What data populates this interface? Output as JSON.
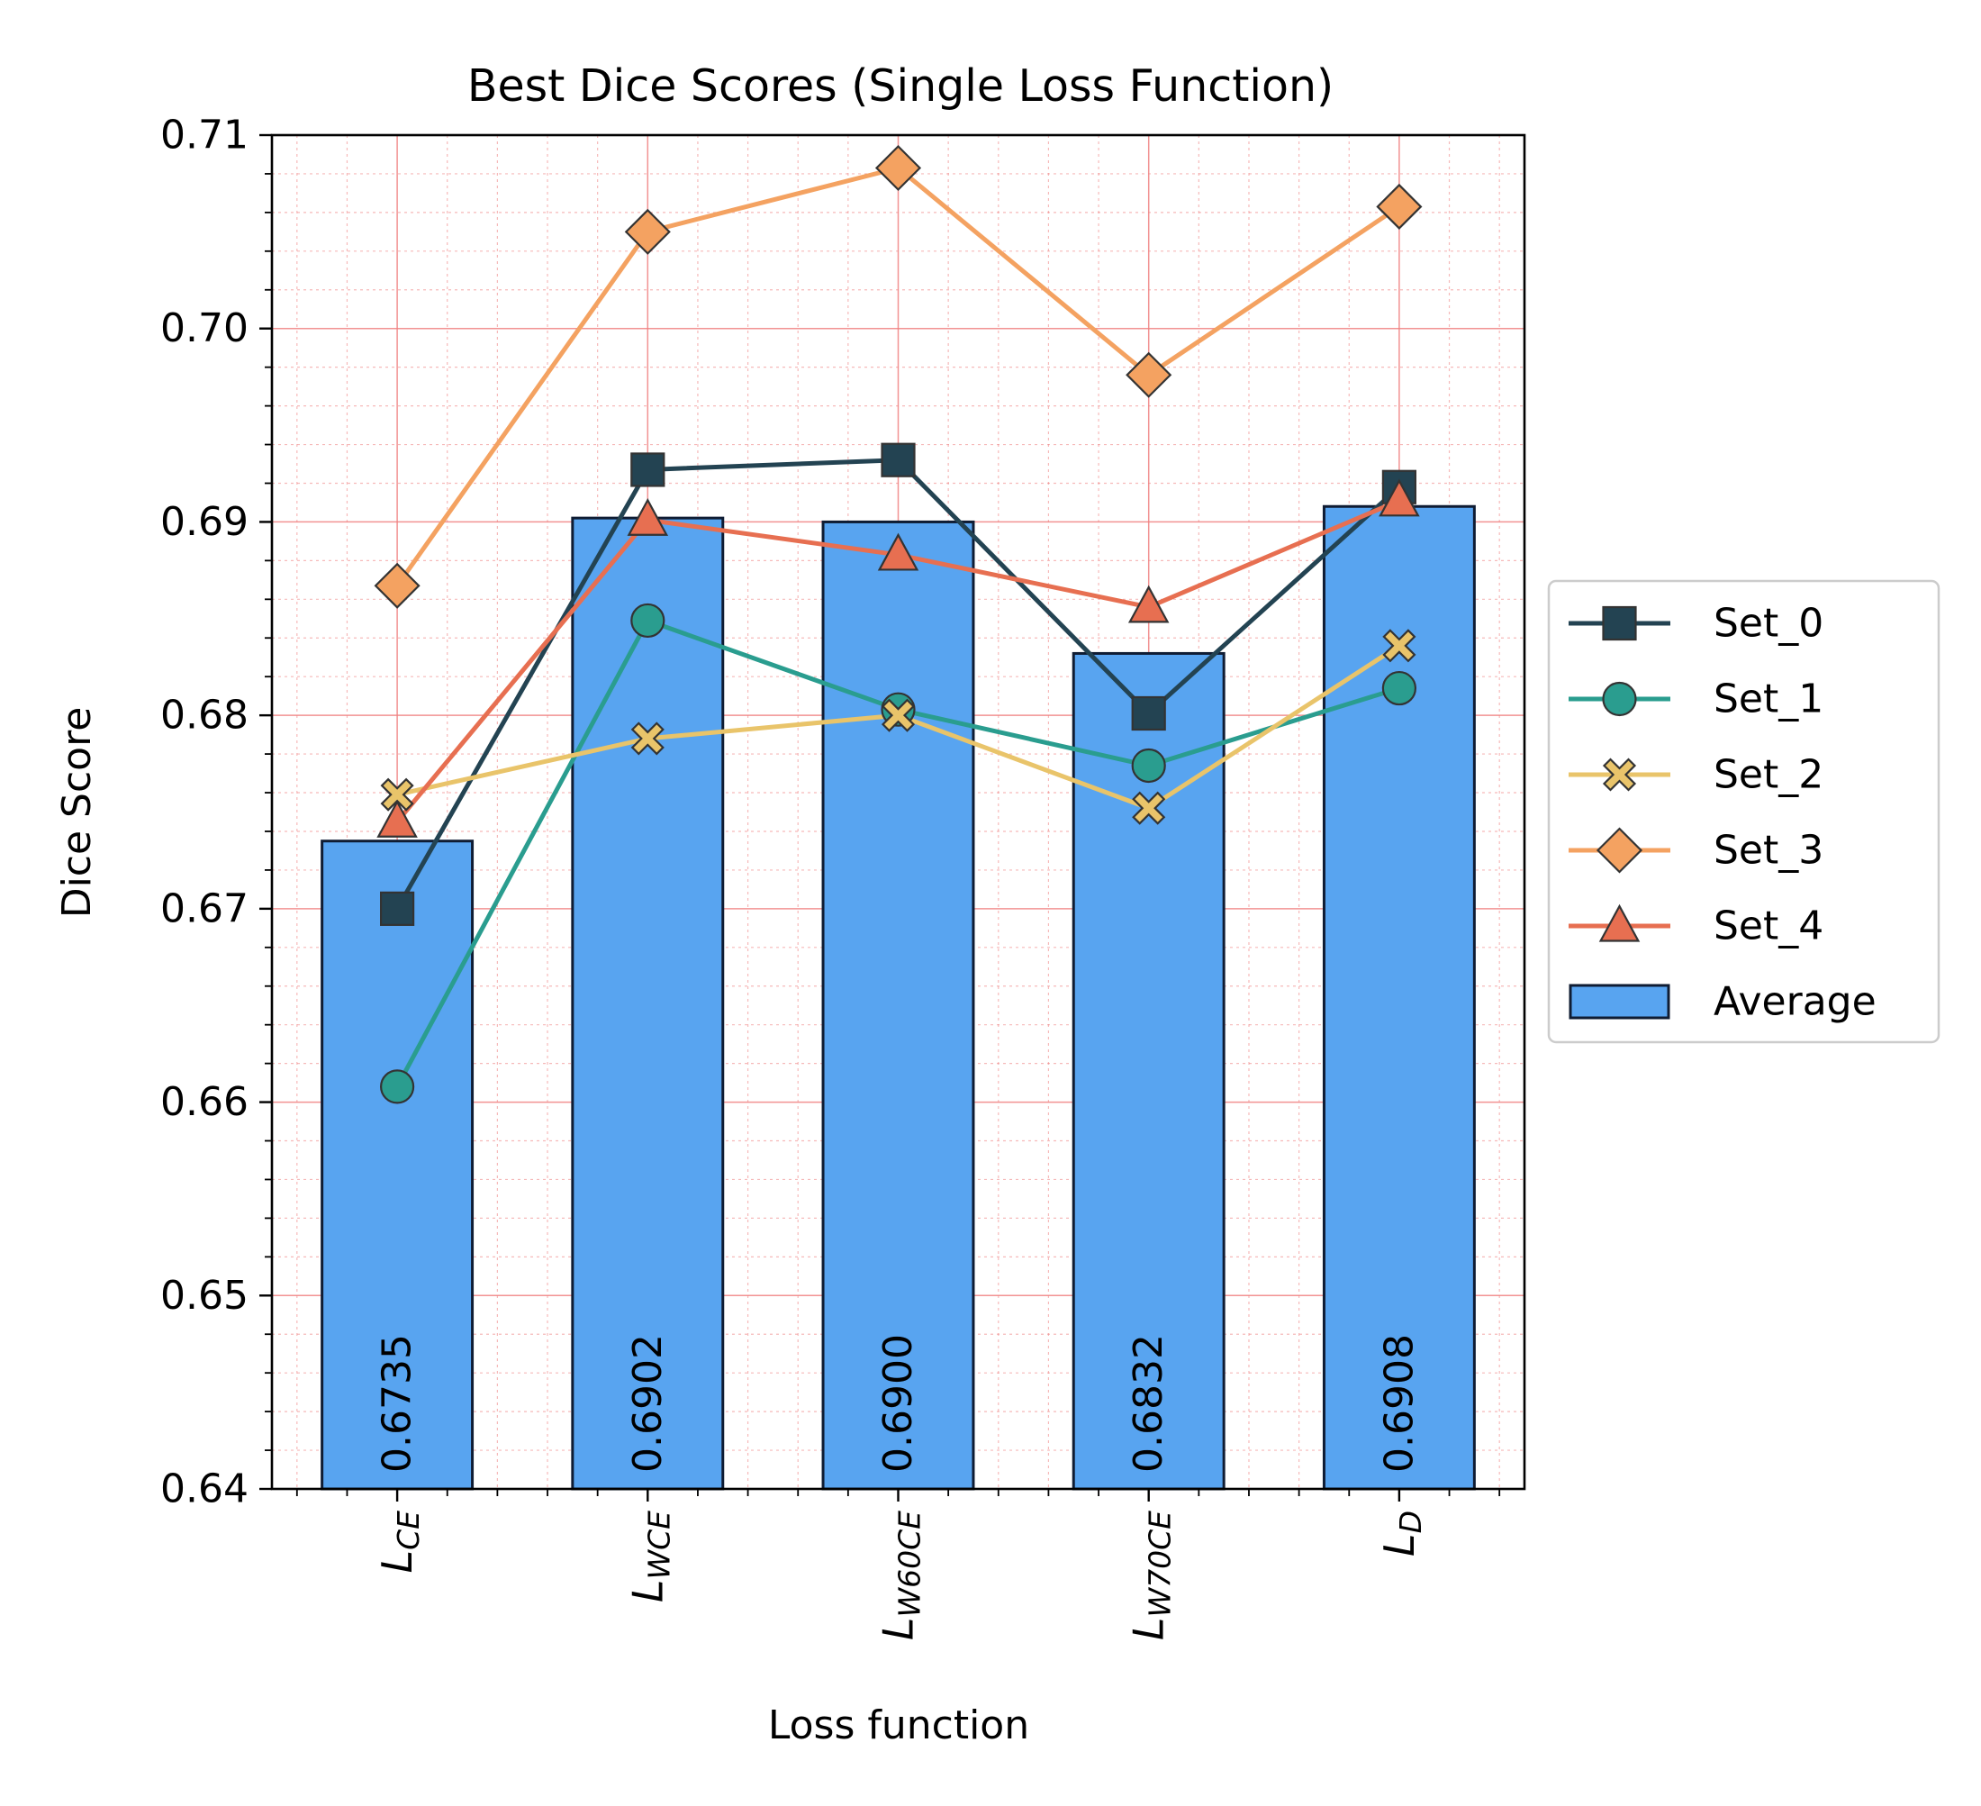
{
  "chart_data": {
    "type": "bar",
    "title": "Best Dice Scores (Single Loss Function)",
    "xlabel": "Loss function",
    "ylabel": "Dice Score",
    "ylim": [
      0.64,
      0.71
    ],
    "yticks": [
      "0.64",
      "0.65",
      "0.66",
      "0.67",
      "0.68",
      "0.69",
      "0.70",
      "0.71"
    ],
    "categories": [
      {
        "main": "L",
        "sub": "CE"
      },
      {
        "main": "L",
        "sub": "WCE"
      },
      {
        "main": "L",
        "sub": "W60CE"
      },
      {
        "main": "L",
        "sub": "W70CE"
      },
      {
        "main": "L",
        "sub": "D"
      }
    ],
    "bars": {
      "name": "Average",
      "values": [
        0.6735,
        0.6902,
        0.69,
        0.6832,
        0.6908
      ],
      "labels": [
        "0.6735",
        "0.6902",
        "0.6900",
        "0.6832",
        "0.6908"
      ],
      "color": "#58a4f0",
      "edge": "#0f1c33"
    },
    "series": [
      {
        "name": "Set_0",
        "marker": "square",
        "color": "#234352",
        "values": [
          0.67,
          0.6927,
          0.6932,
          0.6801,
          0.6918
        ]
      },
      {
        "name": "Set_1",
        "marker": "circle",
        "color": "#2a9d8f",
        "values": [
          0.6608,
          0.6849,
          0.6803,
          0.6774,
          0.6814
        ]
      },
      {
        "name": "Set_2",
        "marker": "x",
        "color": "#e9c46a",
        "values": [
          0.6759,
          0.6788,
          0.68,
          0.6752,
          0.6836
        ]
      },
      {
        "name": "Set_3",
        "marker": "diamond",
        "color": "#f4a261",
        "values": [
          0.6867,
          0.705,
          0.7083,
          0.6976,
          0.7063
        ]
      },
      {
        "name": "Set_4",
        "marker": "triangle",
        "color": "#e76f51",
        "values": [
          0.6745,
          0.6901,
          0.6883,
          0.6856,
          0.6911
        ]
      }
    ],
    "grid": true,
    "legend_position": "center-right-outside"
  }
}
